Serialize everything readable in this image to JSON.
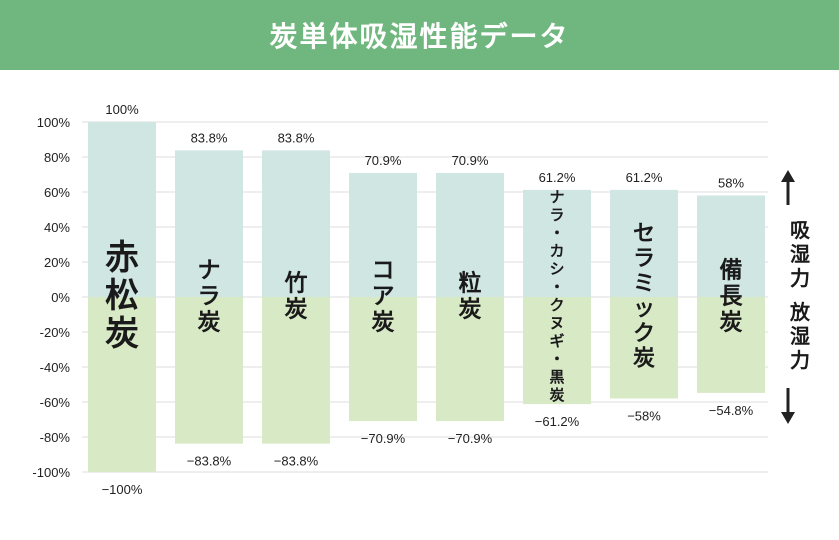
{
  "chart_data": {
    "type": "bar",
    "title": "炭単体吸湿性能データ",
    "categories": [
      "赤松炭",
      "ナラ炭",
      "竹炭",
      "コア炭",
      "粒炭",
      "ナラ・カシ・クヌギ・黒炭",
      "セラミック炭",
      "備長炭"
    ],
    "series": [
      {
        "values": [
          100,
          83.8,
          83.8,
          70.9,
          70.9,
          61.2,
          61.2,
          58
        ]
      },
      {
        "values": [
          -100,
          -83.8,
          -83.8,
          -70.9,
          -70.9,
          -61.2,
          -58,
          -54.8
        ]
      }
    ],
    "top_labels": [
      "100%",
      "83.8%",
      "83.8%",
      "70.9%",
      "70.9%",
      "61.2%",
      "61.2%",
      "58%"
    ],
    "bottom_labels": [
      "−100%",
      "−83.8%",
      "−83.8%",
      "−70.9%",
      "−70.9%",
      "−61.2%",
      "−58%",
      "−54.8%"
    ],
    "yticks": [
      "100%",
      "80%",
      "60%",
      "40%",
      "20%",
      "0%",
      "-20%",
      "-40%",
      "-60%",
      "-80%",
      "-100%"
    ],
    "ylim": [
      -100,
      100
    ],
    "side_labels": {
      "up": "吸湿力",
      "down": "放湿力"
    },
    "colors": {
      "positive": "#cfe6e3",
      "negative": "#d8e9c6",
      "title_bg": "#70b77f",
      "grid": "#dddddd"
    }
  }
}
